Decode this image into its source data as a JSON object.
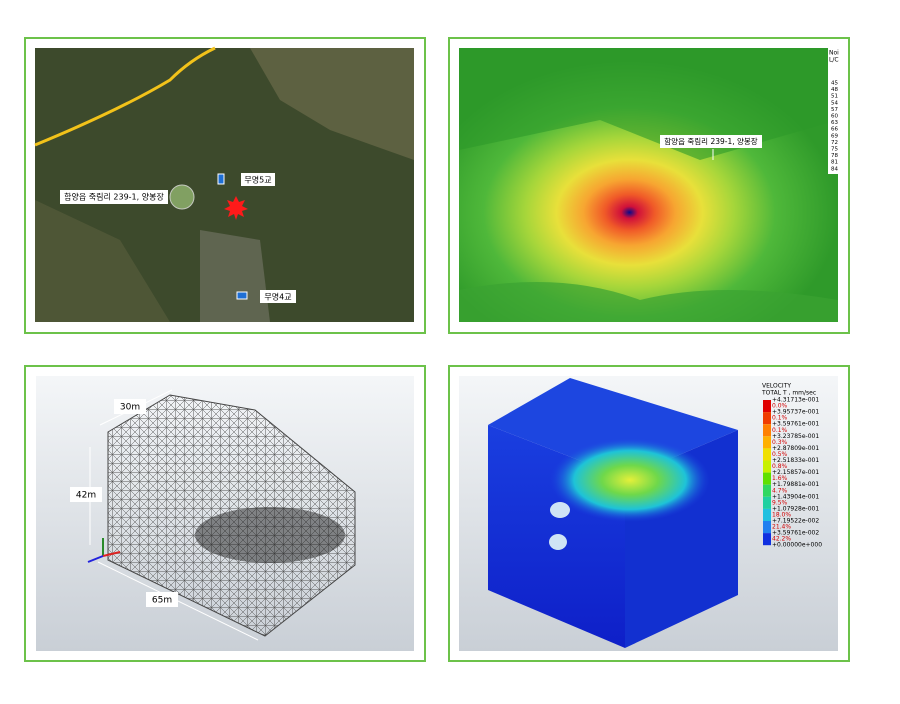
{
  "map_panel": {
    "site_label": "함양읍 죽림리 239-1, 양봉장",
    "bridge_labels": [
      "무명5교",
      "무명4교"
    ]
  },
  "noise_panel": {
    "site_label": "함양읍 죽림리 239-1, 양봉장",
    "legend_title": [
      "Noi",
      "L/C"
    ],
    "legend_values": [
      45,
      48,
      51,
      54,
      57,
      60,
      63,
      66,
      69,
      72,
      75,
      78,
      81,
      84
    ]
  },
  "mesh_panel": {
    "dimensions": [
      "30m",
      "42m",
      "65m"
    ]
  },
  "velocity_panel": {
    "title": "VELOCITY",
    "subtitle": "TOTAL T , mm/sec",
    "levels": [
      "+4.31713e-001",
      "+3.95737e-001",
      "+3.59761e-001",
      "+3.23785e-001",
      "+2.87809e-001",
      "+2.51833e-001",
      "+2.15857e-001",
      "+1.79881e-001",
      "+1.43904e-001",
      "+1.07928e-001",
      "+7.19522e-002",
      "+3.59761e-002",
      "+0.00000e+000"
    ],
    "percentages": [
      "0.0%",
      "0.1%",
      "0.1%",
      "0.3%",
      "0.5%",
      "0.8%",
      "1.6%",
      "4.7%",
      "9.5%",
      "18.0%",
      "21.4%",
      "42.2%"
    ]
  }
}
